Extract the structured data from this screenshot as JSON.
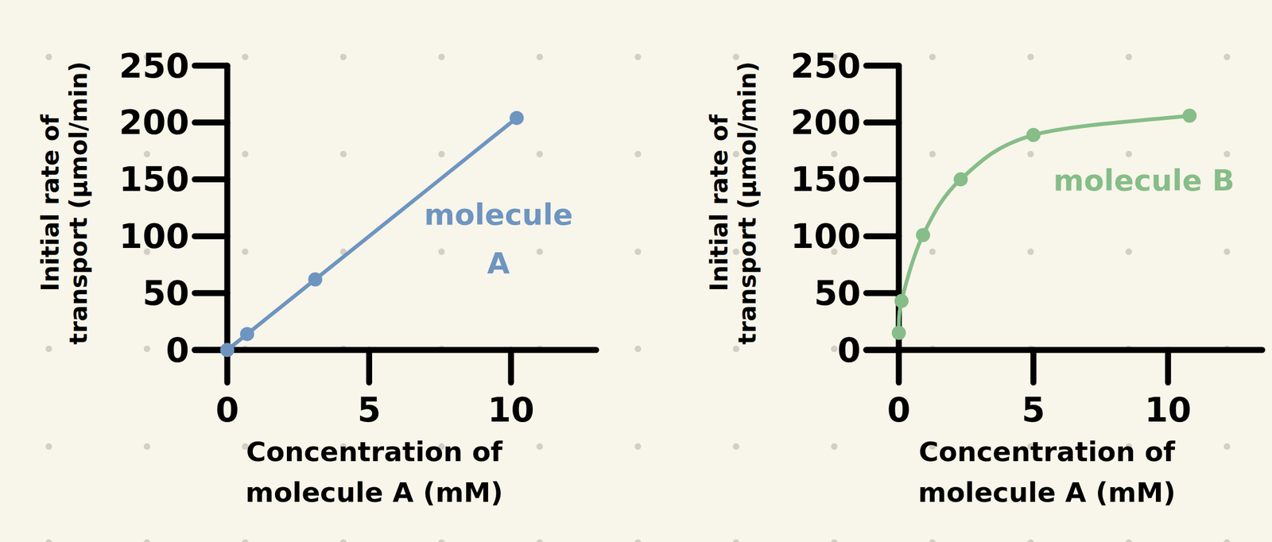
{
  "chart_data": [
    {
      "type": "line",
      "xlabel": "Concentration of molecule A (mM)",
      "ylabel": "Initial rate of transport (μmol/min)",
      "x": [
        0,
        0.7,
        3.1,
        10.2
      ],
      "xlim": [
        0,
        13
      ],
      "ylim": [
        0,
        250
      ],
      "xticks": [
        0,
        5,
        10
      ],
      "yticks": [
        0,
        50,
        100,
        150,
        200,
        250
      ],
      "grid": false,
      "series": [
        {
          "name": "molecule A",
          "color": "#6e95c0",
          "values": [
            0,
            14,
            62,
            204
          ],
          "marker": "circle",
          "line_style": "solid"
        }
      ]
    },
    {
      "type": "line",
      "xlabel": "Concentration of molecule A (mM)",
      "ylabel": "Initial rate of transport (μmol/min)",
      "x": [
        0,
        0.1,
        0.9,
        2.3,
        5,
        10.8
      ],
      "xlim": [
        0,
        13.5
      ],
      "ylim": [
        0,
        250
      ],
      "xticks": [
        0,
        5,
        10
      ],
      "yticks": [
        0,
        50,
        100,
        150,
        200,
        250
      ],
      "grid": false,
      "series": [
        {
          "name": "molecule B",
          "color": "#86bd88",
          "values": [
            15,
            43,
            101,
            150,
            189,
            206
          ],
          "marker": "circle",
          "line_style": "smooth"
        }
      ]
    }
  ]
}
